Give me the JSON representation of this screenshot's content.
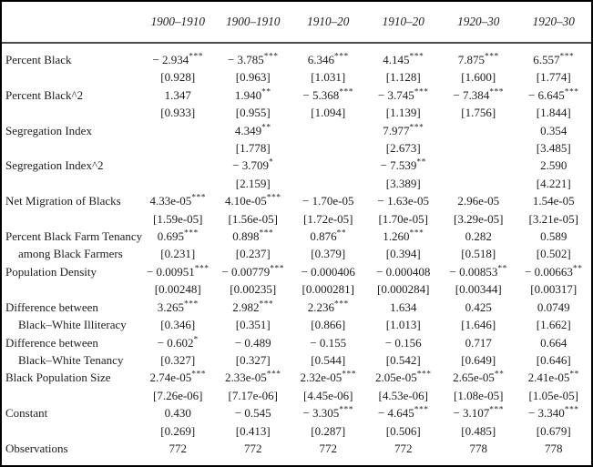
{
  "colors": {
    "frame": "#000000",
    "header_rule": "#4a4a4a",
    "text": "#1c1c1c",
    "background": "#ffffff"
  },
  "header": {
    "columns": [
      "1900–1910",
      "1900–1910",
      "1910–20",
      "1910–20",
      "1920–30",
      "1920–30"
    ]
  },
  "table": {
    "rows": [
      {
        "label": "Percent Black",
        "values": [
          "− 2.934***",
          "− 3.785***",
          "6.346***",
          "4.145***",
          "7.875***",
          "6.557***"
        ],
        "ses": [
          "[0.928]",
          "[0.963]",
          "[1.031]",
          "[1.128]",
          "[1.600]",
          "[1.774]"
        ]
      },
      {
        "label": "Percent Black^2",
        "values": [
          "1.347",
          "1.940**",
          "− 5.368***",
          "− 3.745***",
          "− 7.384***",
          "− 6.645***"
        ],
        "ses": [
          "[0.933]",
          "[0.955]",
          "[1.094]",
          "[1.139]",
          "[1.756]",
          "[1.844]"
        ]
      },
      {
        "label": "Segregation Index",
        "values": [
          "",
          "4.349**",
          "",
          "7.977***",
          "",
          "0.354"
        ],
        "ses": [
          "",
          "[1.778]",
          "",
          "[2.673]",
          "",
          "[3.485]"
        ]
      },
      {
        "label": "Segregation Index^2",
        "values": [
          "",
          "− 3.709*",
          "",
          "− 7.539**",
          "",
          "2.590"
        ],
        "ses": [
          "",
          "[2.159]",
          "",
          "[3.389]",
          "",
          "[4.221]"
        ]
      },
      {
        "label": "Net Migration of Blacks",
        "values": [
          "4.33e-05***",
          "4.10e-05***",
          "− 1.70e-05",
          "− 1.63e-05",
          "2.96e-05",
          "1.54e-05"
        ],
        "ses": [
          "[1.59e-05]",
          "[1.56e-05]",
          "[1.72e-05]",
          "[1.70e-05]",
          "[3.29e-05]",
          "[3.21e-05]"
        ]
      },
      {
        "label": "Percent Black Farm Tenancy",
        "label2": "among Black Farmers",
        "values": [
          "0.695***",
          "0.898***",
          "0.876**",
          "1.260***",
          "0.282",
          "0.589"
        ],
        "ses": [
          "[0.231]",
          "[0.237]",
          "[0.379]",
          "[0.394]",
          "[0.518]",
          "[0.502]"
        ]
      },
      {
        "label": "Population Density",
        "values": [
          "− 0.00951***",
          "− 0.00779***",
          "− 0.000406",
          "− 0.000408",
          "− 0.00853**",
          "− 0.00663**"
        ],
        "ses": [
          "[0.00248]",
          "[0.00235]",
          "[0.000281]",
          "[0.000284]",
          "[0.00344]",
          "[0.00317]"
        ]
      },
      {
        "label": "Difference between",
        "label2": "Black–White Illiteracy",
        "values": [
          "3.265***",
          "2.982***",
          "2.236***",
          "1.634",
          "0.425",
          "0.0749"
        ],
        "ses": [
          "[0.346]",
          "[0.351]",
          "[0.866]",
          "[1.013]",
          "[1.646]",
          "[1.662]"
        ]
      },
      {
        "label": "Difference between",
        "label2": "Black–White Tenancy",
        "values": [
          "− 0.602*",
          "− 0.489",
          "− 0.155",
          "− 0.156",
          "0.717",
          "0.664"
        ],
        "ses": [
          "[0.327]",
          "[0.327]",
          "[0.544]",
          "[0.542]",
          "[0.649]",
          "[0.646]"
        ]
      },
      {
        "label": "Black Population Size",
        "values": [
          "2.74e-05***",
          "2.33e-05***",
          "2.32e-05***",
          "2.05e-05***",
          "2.65e-05**",
          "2.41e-05**"
        ],
        "ses": [
          "[7.26e-06]",
          "[7.17e-06]",
          "[4.45e-06]",
          "[4.53e-06]",
          "[1.08e-05]",
          "[1.05e-05]"
        ]
      },
      {
        "label": "Constant",
        "values": [
          "0.430",
          "− 0.545",
          "− 3.305***",
          "− 4.645***",
          "− 3.107***",
          "− 3.340***"
        ],
        "ses": [
          "[0.269]",
          "[0.413]",
          "[0.287]",
          "[0.506]",
          "[0.485]",
          "[0.679]"
        ]
      },
      {
        "label": "Observations",
        "values": [
          "772",
          "772",
          "772",
          "772",
          "778",
          "778"
        ],
        "ses": null
      }
    ]
  }
}
